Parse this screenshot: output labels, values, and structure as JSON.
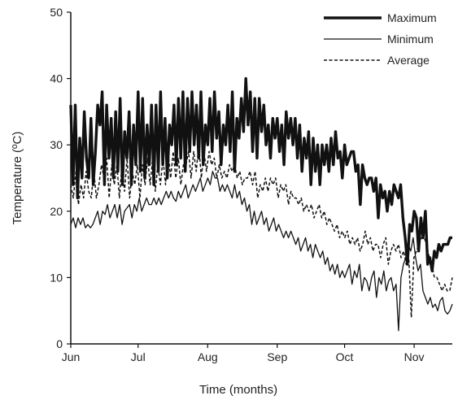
{
  "chart_data": {
    "type": "line",
    "title": "",
    "xlabel": "Time (months)",
    "ylabel": "Temperature (ºC)",
    "ylim": [
      0,
      50
    ],
    "yticks": [
      0,
      10,
      20,
      30,
      40,
      50
    ],
    "xlim": [
      0,
      170
    ],
    "xtick_positions": [
      0,
      30,
      61,
      92,
      122,
      153
    ],
    "xtick_labels": [
      "Jun",
      "Jul",
      "Aug",
      "Sep",
      "Oct",
      "Nov"
    ],
    "legend_position": "top-right",
    "grid": false,
    "colors": {
      "lines": "#111111"
    },
    "series": [
      {
        "name": "Maximum",
        "style": "thick",
        "values": [
          36,
          24,
          36,
          22,
          31,
          25,
          35,
          28,
          25,
          34,
          24,
          29,
          36,
          33,
          38,
          24,
          36,
          28,
          34,
          25,
          35,
          26,
          37,
          24,
          32,
          28,
          35,
          24,
          33,
          27,
          38,
          26,
          37,
          25,
          33,
          27,
          36,
          24,
          36,
          26,
          38,
          27,
          34,
          25,
          33,
          30,
          36,
          27,
          37,
          28,
          38,
          26,
          37,
          29,
          38,
          30,
          36,
          28,
          38,
          27,
          33,
          30,
          37,
          29,
          38,
          31,
          35,
          27,
          33,
          30,
          36,
          29,
          38,
          26,
          34,
          31,
          37,
          32,
          40,
          33,
          38,
          29,
          37,
          28,
          37,
          32,
          36,
          30,
          33,
          28,
          34,
          31,
          34,
          29,
          33,
          27,
          35,
          31,
          34,
          30,
          34,
          28,
          33,
          26,
          31,
          28,
          32,
          24,
          31,
          26,
          30,
          24,
          30,
          27,
          30,
          26,
          31,
          27,
          32,
          28,
          29,
          25,
          30,
          27,
          28,
          29,
          29,
          26,
          27,
          21,
          27,
          25,
          24,
          25,
          25,
          23,
          25,
          19,
          24,
          22,
          23,
          20,
          23,
          21,
          24,
          23,
          22,
          24,
          19,
          16,
          12,
          18,
          17,
          20,
          19,
          14,
          19,
          16,
          20,
          12,
          13,
          11,
          14,
          13,
          15,
          14,
          15,
          15,
          15,
          16,
          16
        ]
      },
      {
        "name": "Minimum",
        "style": "thin",
        "values": [
          18,
          19,
          17.5,
          19,
          18,
          19,
          17.5,
          18,
          17.5,
          18,
          19,
          20,
          18,
          20,
          19.5,
          21,
          19,
          20,
          21,
          19,
          21,
          18,
          20,
          20.5,
          21,
          19,
          21,
          20,
          22,
          20,
          21,
          22,
          21,
          21,
          22,
          21,
          22,
          21,
          22,
          23,
          22,
          23,
          22,
          21.5,
          23,
          22,
          23,
          24,
          22,
          23,
          24,
          23,
          24,
          25,
          23,
          24,
          25,
          24,
          26,
          25,
          25,
          23,
          24,
          23,
          24,
          23,
          22,
          24,
          22,
          23,
          21,
          22,
          20,
          21,
          18,
          20,
          18,
          19,
          20,
          18,
          19,
          17,
          18,
          19,
          17,
          18,
          17,
          16,
          17,
          16,
          17,
          16,
          15,
          16,
          14,
          15,
          16,
          14,
          15,
          13,
          15,
          14,
          13,
          14,
          12,
          13,
          11,
          12,
          10.5,
          12,
          10,
          11,
          10,
          11,
          12,
          9,
          11,
          10,
          12,
          8,
          10,
          9.5,
          8,
          10,
          11,
          7,
          10,
          9,
          11,
          8,
          9.5,
          10,
          8,
          9,
          2,
          10,
          12,
          13,
          15,
          14,
          16,
          13,
          11,
          12,
          8,
          7,
          6,
          7,
          5.5,
          6,
          5,
          6.5,
          7,
          5,
          4.5,
          5,
          6
        ]
      },
      {
        "name": "Average",
        "style": "dashed",
        "values": [
          24,
          22,
          26,
          21,
          24,
          22,
          26,
          23,
          22,
          26,
          22,
          24,
          27,
          25,
          28,
          22,
          27,
          24,
          27,
          22,
          27,
          23,
          28,
          22,
          26,
          24,
          27,
          22,
          27,
          24,
          28,
          24,
          28,
          23,
          27,
          24,
          28,
          24,
          29,
          25,
          29,
          25,
          28,
          24,
          27,
          27,
          29,
          25,
          29,
          26,
          30,
          25,
          29,
          26,
          29,
          27,
          28,
          25,
          27,
          25,
          26,
          25,
          27,
          26,
          27,
          25,
          26,
          24,
          25,
          25,
          26,
          24,
          26,
          22,
          24,
          23,
          25,
          23,
          25,
          24,
          25,
          22,
          24,
          23,
          24,
          21,
          23,
          22,
          22,
          21,
          22,
          20,
          21,
          20,
          21,
          19,
          20,
          21,
          19,
          20,
          18,
          19,
          18,
          17,
          18,
          16,
          17,
          16,
          17,
          15,
          16,
          15,
          16,
          14,
          15,
          17,
          15,
          16,
          14,
          15,
          15,
          13,
          15,
          16,
          12,
          14,
          15,
          14,
          15,
          13,
          14,
          12,
          13,
          4,
          13,
          14,
          15,
          16,
          16,
          15,
          13,
          12,
          10,
          10,
          9,
          8,
          9,
          8,
          8,
          10
        ]
      }
    ]
  }
}
